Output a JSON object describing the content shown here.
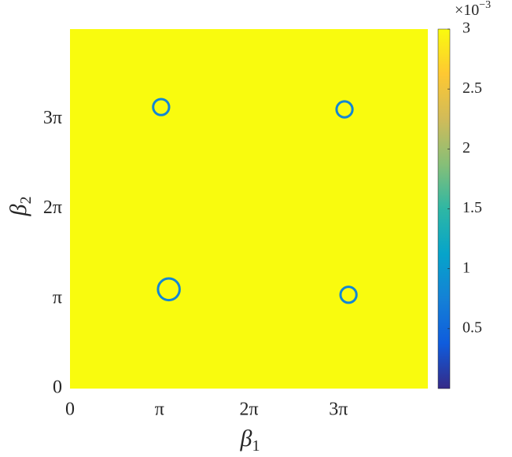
{
  "chart_data": {
    "type": "heatmap",
    "xlabel": "β",
    "xlabel_subscript": "1",
    "ylabel": "β",
    "ylabel_subscript": "2",
    "xlim": [
      0,
      12.5664
    ],
    "ylim": [
      0,
      12.5664
    ],
    "xticks": [
      0,
      {
        "value": 3.1416,
        "label": "π"
      },
      {
        "value": 6.2832,
        "label": "2π"
      },
      {
        "value": 9.4248,
        "label": "3π"
      }
    ],
    "yticks": [
      0,
      {
        "value": 3.1416,
        "label": "π"
      },
      {
        "value": 6.2832,
        "label": "2π"
      },
      {
        "value": 9.4248,
        "label": "3π"
      }
    ],
    "background_value": 3,
    "features": {
      "x": [
        3.2,
        9.64,
        3.47,
        9.78
      ],
      "y": [
        9.84,
        9.76,
        3.47,
        3.28
      ],
      "radius": [
        0.28,
        0.28,
        0.38,
        0.28
      ],
      "value": [
        0.8,
        0.8,
        0.8,
        0.8
      ]
    },
    "clim": [
      0,
      3
    ],
    "cticks": [
      0.5,
      1,
      1.5,
      2,
      2.5,
      3
    ],
    "colorbar_multiplier": "×10",
    "colorbar_exponent": "−3",
    "colormap": [
      "#352a87",
      "#0f5cdd",
      "#1481d6",
      "#06a4ca",
      "#2eb7a4",
      "#87bf77",
      "#d1bb59",
      "#fec832",
      "#f9fb0e"
    ]
  }
}
